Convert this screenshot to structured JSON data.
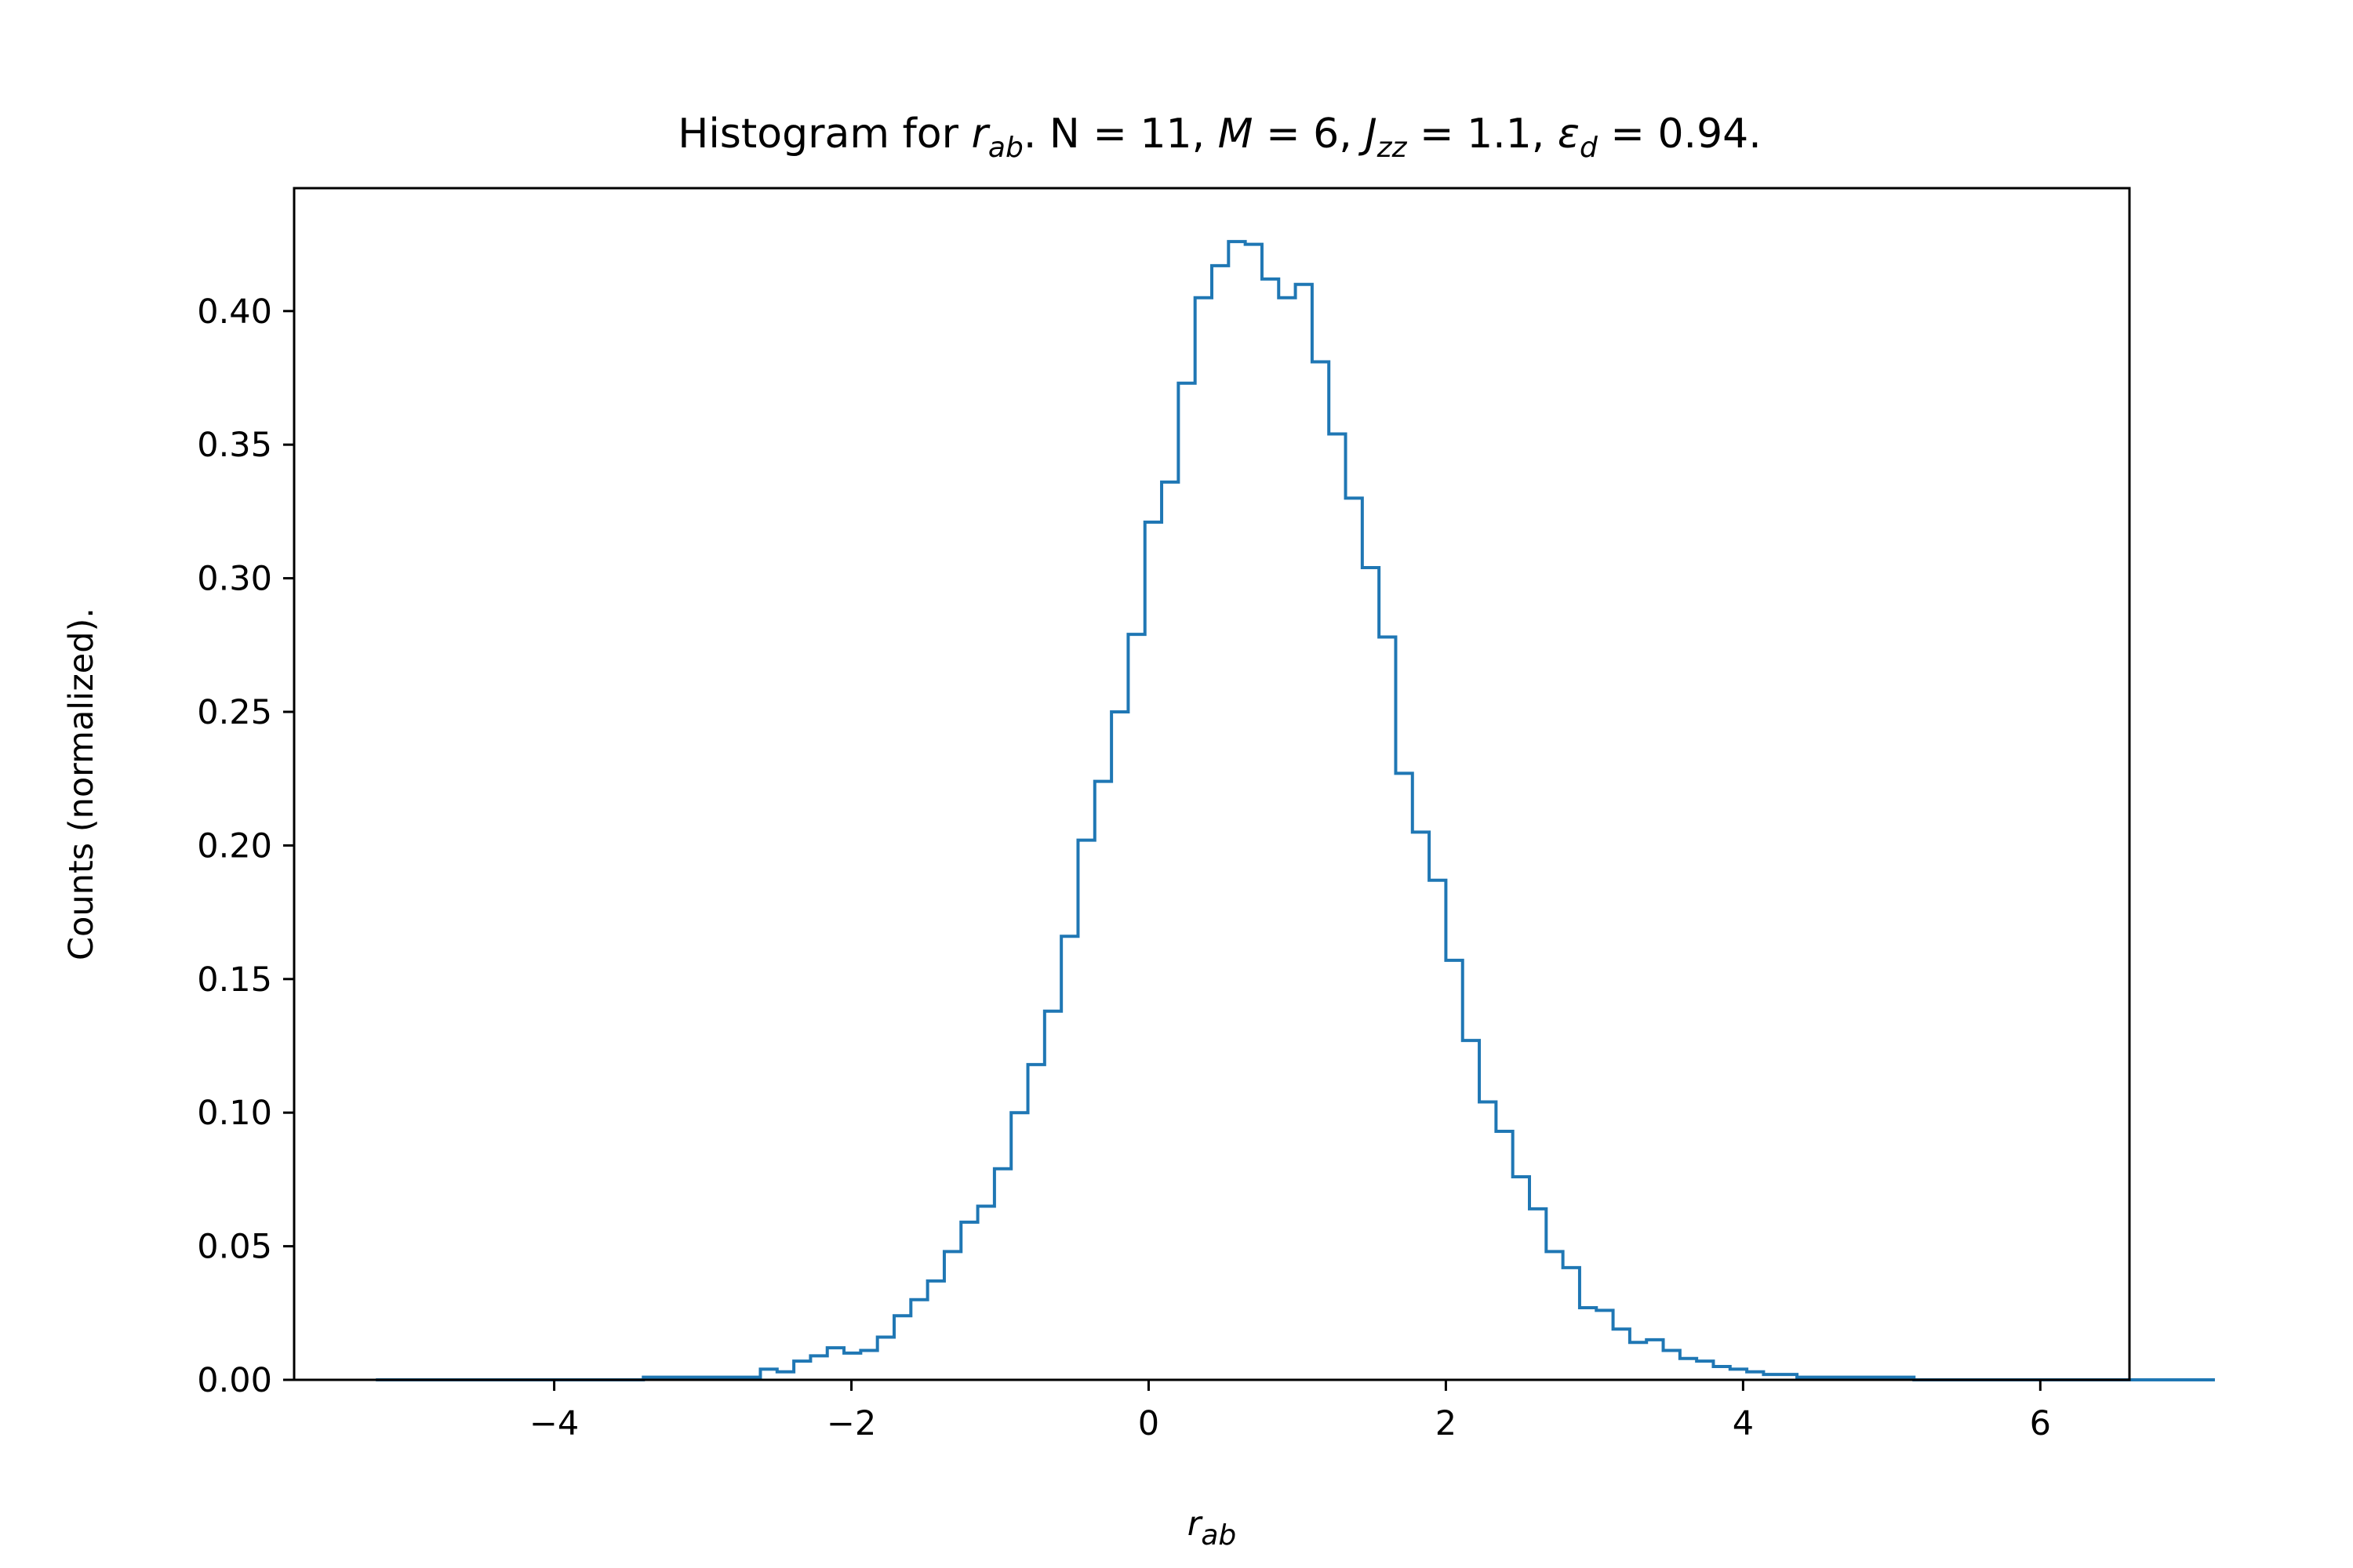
{
  "chart_data": {
    "type": "histogram",
    "title": {
      "prefix": "Histogram for ",
      "r_sym": "r",
      "r_sub": "ab",
      "n_part": ". N",
      "n_val": " = 11, ",
      "m_sym": "M",
      "m_val": " = 6, ",
      "j_sym": "J",
      "j_sub": "zz",
      "j_val": " = 1.1, ",
      "eps_sym": "ε",
      "eps_sub": "d",
      "eps_val": " = 0.94."
    },
    "xlabel": {
      "sym": "r",
      "sub": "ab"
    },
    "ylabel": "Counts (normalized).",
    "xlim": [
      -5.75,
      6.6
    ],
    "ylim": [
      0,
      0.446
    ],
    "x_ticks": [
      -4,
      -2,
      0,
      2,
      4,
      6
    ],
    "x_tick_labels": [
      "−4",
      "−2",
      "0",
      "2",
      "4",
      "6"
    ],
    "y_ticks": [
      0,
      0.05,
      0.1,
      0.15,
      0.2,
      0.25,
      0.3,
      0.35,
      0.4
    ],
    "y_tick_labels": [
      "0.00",
      "0.05",
      "0.10",
      "0.15",
      "0.20",
      "0.25",
      "0.30",
      "0.35",
      "0.40"
    ],
    "grid": false,
    "color": "#1f77b4",
    "bin_start": -5.2,
    "bin_width": 0.1125,
    "values": [
      0,
      0,
      0,
      0,
      0,
      0,
      0,
      0,
      0,
      0,
      0,
      0,
      0,
      0,
      0,
      0,
      0.001,
      0.001,
      0.001,
      0.001,
      0.001,
      0.001,
      0.001,
      0.004,
      0.003,
      0.007,
      0.009,
      0.012,
      0.01,
      0.011,
      0.016,
      0.024,
      0.03,
      0.037,
      0.048,
      0.059,
      0.065,
      0.079,
      0.1,
      0.118,
      0.138,
      0.166,
      0.202,
      0.224,
      0.25,
      0.279,
      0.321,
      0.336,
      0.373,
      0.405,
      0.417,
      0.426,
      0.425,
      0.412,
      0.405,
      0.41,
      0.381,
      0.354,
      0.33,
      0.304,
      0.278,
      0.227,
      0.205,
      0.187,
      0.157,
      0.127,
      0.104,
      0.093,
      0.076,
      0.064,
      0.048,
      0.042,
      0.027,
      0.026,
      0.019,
      0.014,
      0.015,
      0.011,
      0.008,
      0.007,
      0.005,
      0.004,
      0.003,
      0.002,
      0.002,
      0.001,
      0.001,
      0.001,
      0.001,
      0.001,
      0.001,
      0.001,
      0,
      0,
      0,
      0,
      0,
      0,
      0,
      0,
      0,
      0,
      0,
      0,
      0,
      0,
      0,
      0,
      0,
      0
    ]
  }
}
